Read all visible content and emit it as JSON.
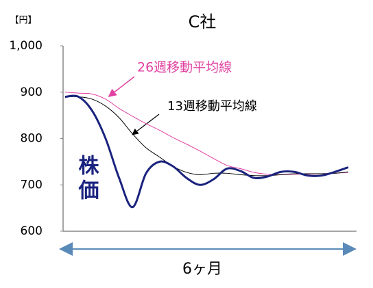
{
  "chart_data": {
    "type": "line",
    "title": "C社",
    "y_unit": "【円】",
    "x_label": "6ヶ月",
    "categories": [
      null,
      null,
      null,
      null,
      null,
      null,
      null,
      null,
      null,
      null,
      null,
      null,
      null,
      null,
      null,
      null,
      null,
      null,
      null,
      null,
      null,
      null
    ],
    "series": [
      {
        "name": "株価",
        "color": "#1a237e",
        "values": [
          890,
          890,
          860,
          800,
          715,
          652,
          725,
          750,
          740,
          715,
          700,
          712,
          735,
          730,
          715,
          718,
          728,
          728,
          720,
          720,
          728,
          738
        ]
      },
      {
        "name": "13週移動平均線",
        "color": "#000000",
        "values": [
          890,
          890,
          885,
          870,
          845,
          810,
          780,
          760,
          740,
          727,
          722,
          725,
          725,
          722,
          720,
          720,
          722,
          724,
          724,
          724,
          725,
          728
        ]
      },
      {
        "name": "26週移動平均線",
        "color": "#e040a0",
        "values": [
          900,
          898,
          896,
          885,
          865,
          848,
          832,
          818,
          802,
          788,
          773,
          757,
          742,
          735,
          727,
          723,
          722,
          723,
          723,
          724,
          725,
          727
        ]
      }
    ],
    "ylim": [
      600,
      1000
    ],
    "yticks": [
      600,
      700,
      800,
      900,
      {
        "value": 1000,
        "label": "1,000"
      }
    ],
    "grid": false
  }
}
